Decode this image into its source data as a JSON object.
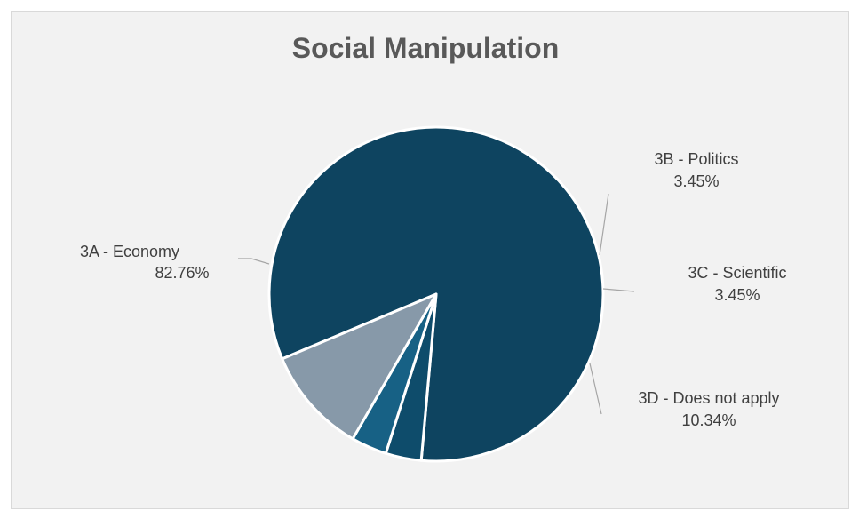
{
  "chart_data": {
    "type": "pie",
    "title": "Social Manipulation",
    "colors": [
      "#0e4460",
      "#0e4c6b",
      "#176185",
      "#8799a9"
    ],
    "slices": [
      {
        "label": "3A - Economy",
        "value": 82.76,
        "value_label": "82.76%"
      },
      {
        "label": "3B - Politics",
        "value": 3.45,
        "value_label": "3.45%"
      },
      {
        "label": "3C - Scientific",
        "value": 3.45,
        "value_label": "3.45%"
      },
      {
        "label": "3D - Does not apply",
        "value": 10.34,
        "value_label": "10.34%"
      }
    ]
  }
}
